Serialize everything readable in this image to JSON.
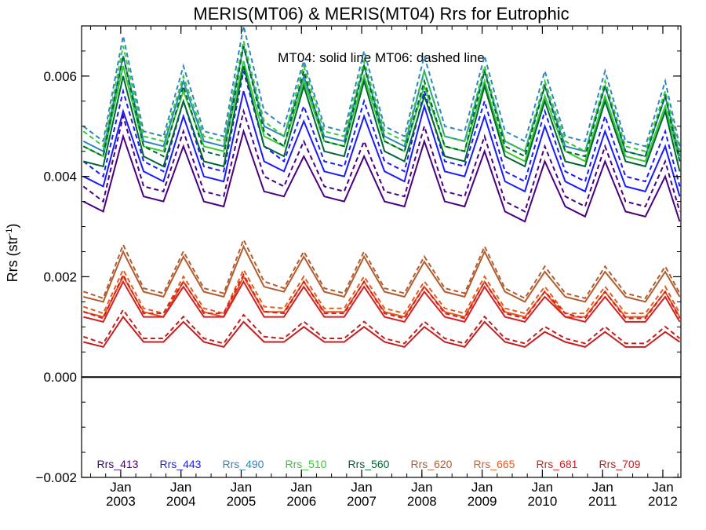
{
  "chart_data": {
    "type": "line",
    "title": "MERIS(MT06) & MERIS(MT04)  Rrs for Eutrophic",
    "annotation": "MT04: solid line   MT06: dashed line",
    "ylabel_main": "Rrs (str",
    "ylabel_sup": "-1",
    "ylabel_end": ")",
    "xlabel": "",
    "xlim": [
      2002.35,
      2012.3
    ],
    "ylim": [
      -0.002,
      0.007
    ],
    "yticks": [
      {
        "value": 0.006,
        "label": "0.006"
      },
      {
        "value": 0.004,
        "label": "0.004"
      },
      {
        "value": 0.002,
        "label": "0.002"
      },
      {
        "value": 0.0,
        "label": "0.000"
      },
      {
        "value": -0.002,
        "label": "−0.002"
      }
    ],
    "xticks": [
      {
        "value": 2003.0,
        "month": "Jan",
        "year": "2003"
      },
      {
        "value": 2004.0,
        "month": "Jan",
        "year": "2004"
      },
      {
        "value": 2005.0,
        "month": "Jan",
        "year": "2005"
      },
      {
        "value": 2006.0,
        "month": "Jan",
        "year": "2006"
      },
      {
        "value": 2007.0,
        "month": "Jan",
        "year": "2007"
      },
      {
        "value": 2008.0,
        "month": "Jan",
        "year": "2008"
      },
      {
        "value": 2009.0,
        "month": "Jan",
        "year": "2009"
      },
      {
        "value": 2010.0,
        "month": "Jan",
        "year": "2010"
      },
      {
        "value": 2011.0,
        "month": "Jan",
        "year": "2011"
      },
      {
        "value": 2012.0,
        "month": "Jan",
        "year": "2012"
      }
    ],
    "zero_line": 0.0,
    "grid": false,
    "legend_placement": "bottom",
    "x": [
      2002.38,
      2002.71,
      2003.04,
      2003.38,
      2003.71,
      2004.04,
      2004.38,
      2004.71,
      2005.04,
      2005.38,
      2005.71,
      2006.04,
      2006.38,
      2006.71,
      2007.04,
      2007.38,
      2007.71,
      2008.04,
      2008.38,
      2008.71,
      2009.04,
      2009.38,
      2009.71,
      2010.04,
      2010.38,
      2010.71,
      2011.04,
      2011.38,
      2011.71,
      2012.04,
      2012.28
    ],
    "series": [
      {
        "name": "Rrs_413",
        "color": "#4b0082",
        "values": [
          0.0035,
          0.0033,
          0.0048,
          0.0036,
          0.0035,
          0.0046,
          0.0035,
          0.0034,
          0.0049,
          0.0037,
          0.0036,
          0.0044,
          0.0036,
          0.0035,
          0.0044,
          0.0035,
          0.0034,
          0.0047,
          0.0035,
          0.0034,
          0.0045,
          0.0033,
          0.0031,
          0.0043,
          0.0034,
          0.0032,
          0.0043,
          0.0033,
          0.0032,
          0.004,
          0.0031
        ]
      },
      {
        "name": "Rrs_443",
        "color": "#1a1aff",
        "values": [
          0.004,
          0.0038,
          0.0053,
          0.0041,
          0.0039,
          0.0052,
          0.004,
          0.0039,
          0.0057,
          0.0043,
          0.0041,
          0.0051,
          0.0041,
          0.004,
          0.0052,
          0.0041,
          0.0039,
          0.0054,
          0.0041,
          0.004,
          0.0052,
          0.0039,
          0.0037,
          0.005,
          0.0039,
          0.0037,
          0.0049,
          0.0038,
          0.0037,
          0.0046,
          0.0036
        ]
      },
      {
        "name": "Rrs_490",
        "color": "#2e86c1",
        "values": [
          0.0047,
          0.0045,
          0.0064,
          0.0047,
          0.0046,
          0.0059,
          0.0047,
          0.0046,
          0.0066,
          0.005,
          0.0048,
          0.006,
          0.0048,
          0.0047,
          0.0062,
          0.0048,
          0.0046,
          0.0061,
          0.0048,
          0.0047,
          0.0061,
          0.0047,
          0.0045,
          0.0058,
          0.0046,
          0.0045,
          0.0058,
          0.0045,
          0.0044,
          0.0056,
          0.0044
        ]
      },
      {
        "name": "Rrs_510",
        "color": "#33cc33",
        "values": [
          0.0046,
          0.0044,
          0.0062,
          0.0046,
          0.0045,
          0.0057,
          0.0046,
          0.0045,
          0.0063,
          0.0048,
          0.0046,
          0.0059,
          0.0047,
          0.0046,
          0.006,
          0.0047,
          0.0045,
          0.0058,
          0.0046,
          0.0045,
          0.0059,
          0.0045,
          0.0043,
          0.0056,
          0.0045,
          0.0043,
          0.0056,
          0.0044,
          0.0043,
          0.0054,
          0.0043
        ]
      },
      {
        "name": "Rrs_560",
        "color": "#006633",
        "values": [
          0.0043,
          0.0042,
          0.006,
          0.0044,
          0.0042,
          0.0055,
          0.0043,
          0.0042,
          0.0062,
          0.0046,
          0.0044,
          0.0058,
          0.0045,
          0.0044,
          0.0059,
          0.0045,
          0.0043,
          0.0056,
          0.0044,
          0.0043,
          0.0058,
          0.0044,
          0.0042,
          0.0055,
          0.0043,
          0.0042,
          0.0055,
          0.0043,
          0.0042,
          0.0053,
          0.0041
        ]
      },
      {
        "name": "Rrs_620",
        "color": "#b35c2e",
        "values": [
          0.0016,
          0.0015,
          0.0025,
          0.0017,
          0.0016,
          0.0024,
          0.0017,
          0.0016,
          0.0026,
          0.0018,
          0.0017,
          0.0024,
          0.0017,
          0.0016,
          0.0024,
          0.0017,
          0.0016,
          0.0023,
          0.0017,
          0.0016,
          0.0025,
          0.0017,
          0.0015,
          0.0021,
          0.0016,
          0.0015,
          0.0021,
          0.0016,
          0.0015,
          0.0021,
          0.0016
        ]
      },
      {
        "name": "Rrs_665",
        "color": "#e55a1e",
        "values": [
          0.0013,
          0.0012,
          0.002,
          0.0013,
          0.0012,
          0.0019,
          0.0013,
          0.0012,
          0.002,
          0.0013,
          0.0013,
          0.0019,
          0.0013,
          0.0013,
          0.0019,
          0.0013,
          0.0012,
          0.0018,
          0.0013,
          0.0012,
          0.0019,
          0.0013,
          0.0012,
          0.0017,
          0.0012,
          0.0012,
          0.0017,
          0.0012,
          0.0012,
          0.0017,
          0.0012
        ]
      },
      {
        "name": "Rrs_681",
        "color": "#d42020",
        "values": [
          0.0012,
          0.0011,
          0.0019,
          0.0012,
          0.0012,
          0.0018,
          0.0012,
          0.0012,
          0.0019,
          0.0012,
          0.0012,
          0.0018,
          0.0012,
          0.0012,
          0.0018,
          0.0012,
          0.0011,
          0.0017,
          0.0012,
          0.0011,
          0.0018,
          0.0012,
          0.0011,
          0.0016,
          0.0012,
          0.0011,
          0.0016,
          0.0011,
          0.0011,
          0.0016,
          0.0011
        ]
      },
      {
        "name": "Rrs_709",
        "color": "#c41e1e",
        "values": [
          0.0007,
          0.0006,
          0.0012,
          0.0007,
          0.0007,
          0.0011,
          0.0007,
          0.0006,
          0.0011,
          0.0007,
          0.0007,
          0.001,
          0.0007,
          0.0007,
          0.001,
          0.0007,
          0.0006,
          0.001,
          0.0007,
          0.0006,
          0.0011,
          0.0007,
          0.0006,
          0.0009,
          0.0007,
          0.0006,
          0.0009,
          0.0006,
          0.0006,
          0.0009,
          0.0007
        ]
      }
    ],
    "mt06_offsets": [
      0.0003,
      0.0002,
      0.0004,
      0.0002,
      0.0002,
      0.0003,
      0.0002,
      0.0002,
      0.0004,
      0.0003,
      0.0002,
      0.0003,
      0.0002,
      0.0002,
      0.0003,
      0.0002,
      0.0002,
      0.0003,
      0.0002,
      0.0002,
      0.0003,
      0.0002,
      0.0002,
      0.0003,
      0.0002,
      0.0002,
      0.0003,
      0.0002,
      0.0002,
      0.0003,
      0.0002
    ]
  }
}
